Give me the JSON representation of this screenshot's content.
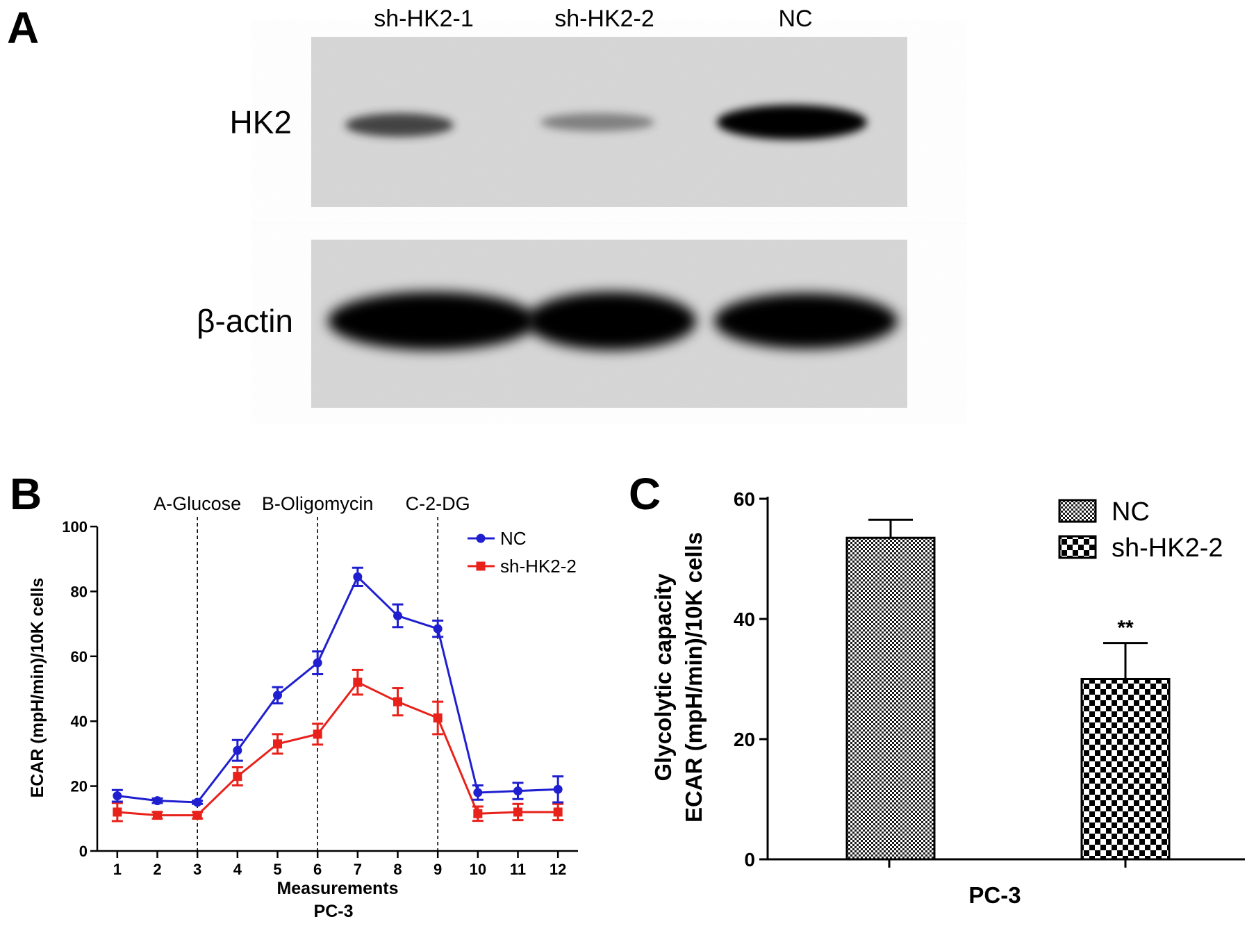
{
  "panels": {
    "a": {
      "letter": "A",
      "lanes": [
        "sh-HK2-1",
        "sh-HK2-2",
        "NC"
      ],
      "rows": [
        "HK2",
        "β-actin"
      ]
    },
    "b": {
      "letter": "B",
      "conditions": [
        "A-Glucose",
        "B-Oligomycin",
        "C-2-DG"
      ],
      "xlabel": "Measurements",
      "sublabel": "PC-3",
      "ylabel": "ECAR (mpH/min)/10K cells"
    },
    "c": {
      "letter": "C",
      "ylabel_line1": "Glycolytic capacity",
      "ylabel_line2": "ECAR (mpH/min)/10K cells",
      "xlabel": "PC-3",
      "significance": "**"
    }
  },
  "chart_data": [
    {
      "type": "line",
      "x": [
        1,
        2,
        3,
        4,
        5,
        6,
        7,
        8,
        9,
        10,
        11,
        12
      ],
      "xlim": [
        0.5,
        12.5
      ],
      "ylim": [
        0,
        100
      ],
      "yticks": [
        0,
        20,
        40,
        60,
        80,
        100
      ],
      "grid": false,
      "legend_position": "top-right",
      "vlines": [
        {
          "x": 3,
          "label": "A-Glucose"
        },
        {
          "x": 6,
          "label": "B-Oligomycin"
        },
        {
          "x": 9,
          "label": "C-2-DG"
        }
      ],
      "series": [
        {
          "name": "NC",
          "color": "#1f1fd0",
          "marker": "circle",
          "values": [
            17,
            15.5,
            15,
            31,
            48,
            58,
            84.5,
            72.5,
            68.5,
            18,
            18.5,
            19
          ],
          "errors": [
            1.8,
            0.7,
            0.5,
            3.2,
            2.5,
            3.5,
            2.8,
            3.5,
            2.5,
            2.2,
            2.5,
            4
          ]
        },
        {
          "name": "sh-HK2-2",
          "color": "#e8221b",
          "marker": "square",
          "values": [
            12,
            11,
            11,
            23,
            33,
            36,
            52,
            46,
            41,
            11.5,
            12,
            12
          ],
          "errors": [
            2.8,
            1,
            1,
            2.8,
            3,
            3.2,
            3.8,
            4.2,
            5,
            2.2,
            2.5,
            2.5
          ]
        }
      ]
    },
    {
      "type": "bar",
      "categories": [
        "NC",
        "sh-HK2-2"
      ],
      "values": [
        53.5,
        30
      ],
      "errors": [
        3,
        6
      ],
      "ylim": [
        0,
        60
      ],
      "yticks": [
        0,
        20,
        40,
        60
      ],
      "xlabel": "PC-3",
      "grid": false,
      "legend_position": "top-right",
      "series_patterns": [
        "fine-checker",
        "coarse-checker"
      ],
      "annotations": [
        {
          "category": "sh-HK2-2",
          "text": "**"
        }
      ]
    }
  ]
}
